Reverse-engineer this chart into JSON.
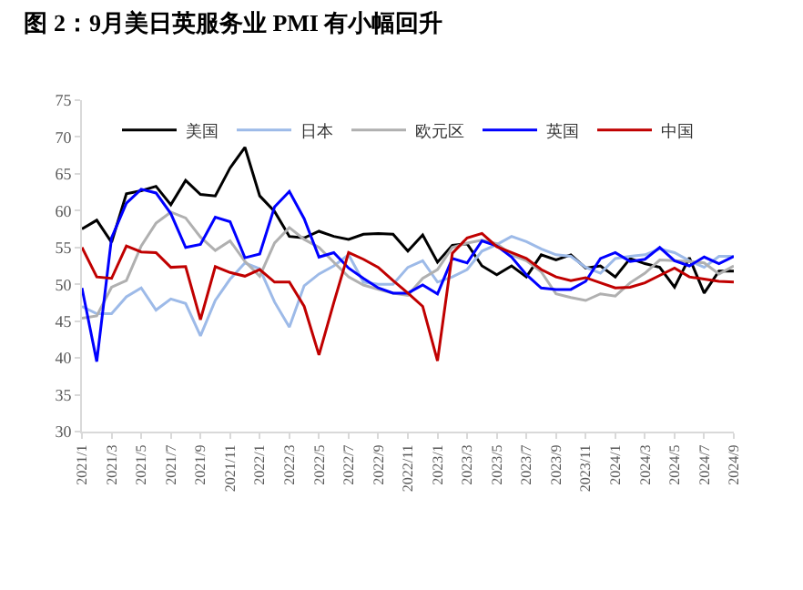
{
  "chart_data": {
    "type": "line",
    "title": "图 2：9月美日英服务业 PMI 有小幅回升",
    "categories": [
      "2021/1",
      null,
      "2021/3",
      null,
      "2021/5",
      null,
      "2021/7",
      null,
      "2021/9",
      null,
      "2021/11",
      null,
      "2022/1",
      null,
      "2022/3",
      null,
      "2022/5",
      null,
      "2022/7",
      null,
      "2022/9",
      null,
      "2022/11",
      null,
      "2023/1",
      null,
      "2023/3",
      null,
      "2023/5",
      null,
      "2023/7",
      null,
      "2023/9",
      null,
      "2023/11",
      null,
      "2024/1",
      null,
      "2024/3",
      null,
      "2024/5",
      null,
      "2024/7",
      null,
      "2024/9"
    ],
    "series": [
      {
        "name": "美国",
        "color": "#000000",
        "values": [
          57.5,
          58.7,
          55.7,
          62.3,
          62.7,
          63.3,
          60.8,
          64.1,
          62.2,
          62.0,
          65.8,
          68.6,
          62.0,
          59.9,
          56.5,
          56.3,
          57.2,
          56.5,
          56.1,
          56.8,
          56.9,
          56.8,
          54.5,
          56.7,
          53.0,
          55.3,
          55.5,
          52.5,
          51.3,
          52.5,
          51.0,
          54.0,
          53.3,
          54.0,
          52.2,
          52.5,
          51.0,
          53.5,
          52.8,
          52.3,
          49.6,
          53.6,
          48.8,
          51.8,
          51.8
        ]
      },
      {
        "name": "日本",
        "color": "#9dbae8",
        "values": [
          47.0,
          46.0,
          46.0,
          48.3,
          49.5,
          46.5,
          48.0,
          47.4,
          43.0,
          47.8,
          50.7,
          52.9,
          52.1,
          47.6,
          44.2,
          49.8,
          51.4,
          52.5,
          54.0,
          50.3,
          50.0,
          50.0,
          52.3,
          53.2,
          50.3,
          51.0,
          52.0,
          54.5,
          55.4,
          56.5,
          55.8,
          54.8,
          54.0,
          53.8,
          52.3,
          51.5,
          53.5,
          53.8,
          54.0,
          54.8,
          54.3,
          53.2,
          52.3,
          53.8,
          53.8
        ]
      },
      {
        "name": "欧元区",
        "color": "#b0b0b0",
        "values": [
          45.4,
          45.7,
          49.6,
          50.5,
          55.2,
          58.3,
          59.8,
          59.0,
          56.4,
          54.6,
          55.9,
          53.1,
          51.1,
          55.6,
          57.7,
          56.1,
          55.0,
          53.0,
          51.0,
          49.9,
          49.3,
          48.8,
          48.5,
          50.8,
          52.0,
          55.0,
          55.6,
          56.0,
          55.5,
          54.0,
          53.2,
          51.7,
          48.7,
          48.2,
          47.8,
          48.7,
          48.4,
          50.2,
          51.5,
          53.3,
          53.2,
          53.1,
          52.9,
          51.4,
          52.5
        ]
      },
      {
        "name": "英国",
        "color": "#0000ff",
        "values": [
          49.5,
          39.5,
          56.3,
          61.0,
          62.9,
          62.4,
          59.6,
          55.0,
          55.4,
          59.1,
          58.5,
          53.6,
          54.1,
          60.5,
          62.6,
          58.9,
          53.7,
          54.3,
          52.2,
          50.8,
          49.5,
          48.8,
          48.8,
          49.9,
          48.7,
          53.5,
          52.9,
          55.9,
          55.2,
          53.7,
          51.3,
          49.5,
          49.3,
          49.3,
          50.4,
          53.5,
          54.3,
          53.1,
          53.4,
          55.0,
          53.2,
          52.5,
          53.7,
          52.8,
          53.8
        ]
      },
      {
        "name": "中国",
        "color": "#c00000",
        "values": [
          55.0,
          51.0,
          50.8,
          55.2,
          54.4,
          54.3,
          52.3,
          52.4,
          45.2,
          52.4,
          51.6,
          51.1,
          52.0,
          50.3,
          50.3,
          47.0,
          40.4,
          47.5,
          54.3,
          53.4,
          52.3,
          50.5,
          48.8,
          47.0,
          39.6,
          54.2,
          56.3,
          56.9,
          55.1,
          54.3,
          53.5,
          52.0,
          51.0,
          50.5,
          50.9,
          50.2,
          49.5,
          49.6,
          50.2,
          51.2,
          52.2,
          51.0,
          50.7,
          50.4,
          50.3
        ]
      }
    ],
    "ylim": [
      30,
      75
    ],
    "yticks": [
      30,
      35,
      40,
      45,
      50,
      55,
      60,
      65,
      70,
      75
    ],
    "legend": "top",
    "marker": "none",
    "line_style": "solid"
  }
}
